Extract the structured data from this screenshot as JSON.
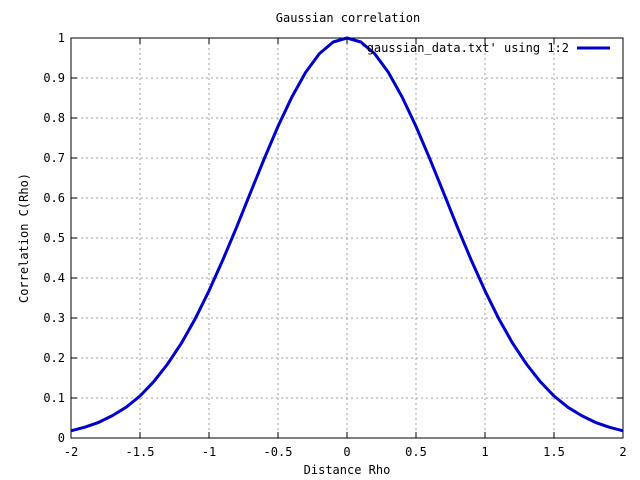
{
  "chart_data": {
    "type": "line",
    "title": "Gaussian correlation",
    "xlabel": "Distance Rho",
    "ylabel": "Correlation C(Rho)",
    "xlim": [
      -2,
      2
    ],
    "ylim": [
      0,
      1
    ],
    "xticks": [
      -2,
      -1.5,
      -1,
      -0.5,
      0,
      0.5,
      1,
      1.5,
      2
    ],
    "xtick_labels": [
      "-2",
      "-1.5",
      "-1",
      "-0.5",
      "0",
      "0.5",
      "1",
      "1.5",
      "2"
    ],
    "yticks": [
      0,
      0.1,
      0.2,
      0.3,
      0.4,
      0.5,
      0.6,
      0.7,
      0.8,
      0.9,
      1
    ],
    "ytick_labels": [
      "0",
      "0.1",
      "0.2",
      "0.3",
      "0.4",
      "0.5",
      "0.6",
      "0.7",
      "0.8",
      "0.9",
      "1"
    ],
    "grid": true,
    "legend_position": "top-right",
    "series": [
      {
        "name": "'gaussian_data.txt' using 1:2",
        "color": "#0000cc",
        "x": [
          -2,
          -1.9,
          -1.8,
          -1.7,
          -1.6,
          -1.5,
          -1.4,
          -1.3,
          -1.2,
          -1.1,
          -1.0,
          -0.9,
          -0.8,
          -0.7,
          -0.6,
          -0.5,
          -0.4,
          -0.3,
          -0.2,
          -0.1,
          0,
          0.1,
          0.2,
          0.3,
          0.4,
          0.5,
          0.6,
          0.7,
          0.8,
          0.9,
          1.0,
          1.1,
          1.2,
          1.3,
          1.4,
          1.5,
          1.6,
          1.7,
          1.8,
          1.9,
          2.0
        ],
        "y": [
          0.018,
          0.027,
          0.039,
          0.056,
          0.077,
          0.105,
          0.141,
          0.185,
          0.237,
          0.298,
          0.368,
          0.445,
          0.527,
          0.613,
          0.698,
          0.779,
          0.852,
          0.914,
          0.961,
          0.99,
          1.0,
          0.99,
          0.961,
          0.914,
          0.852,
          0.779,
          0.698,
          0.613,
          0.527,
          0.445,
          0.368,
          0.298,
          0.237,
          0.185,
          0.141,
          0.105,
          0.077,
          0.056,
          0.039,
          0.027,
          0.018
        ]
      }
    ]
  }
}
